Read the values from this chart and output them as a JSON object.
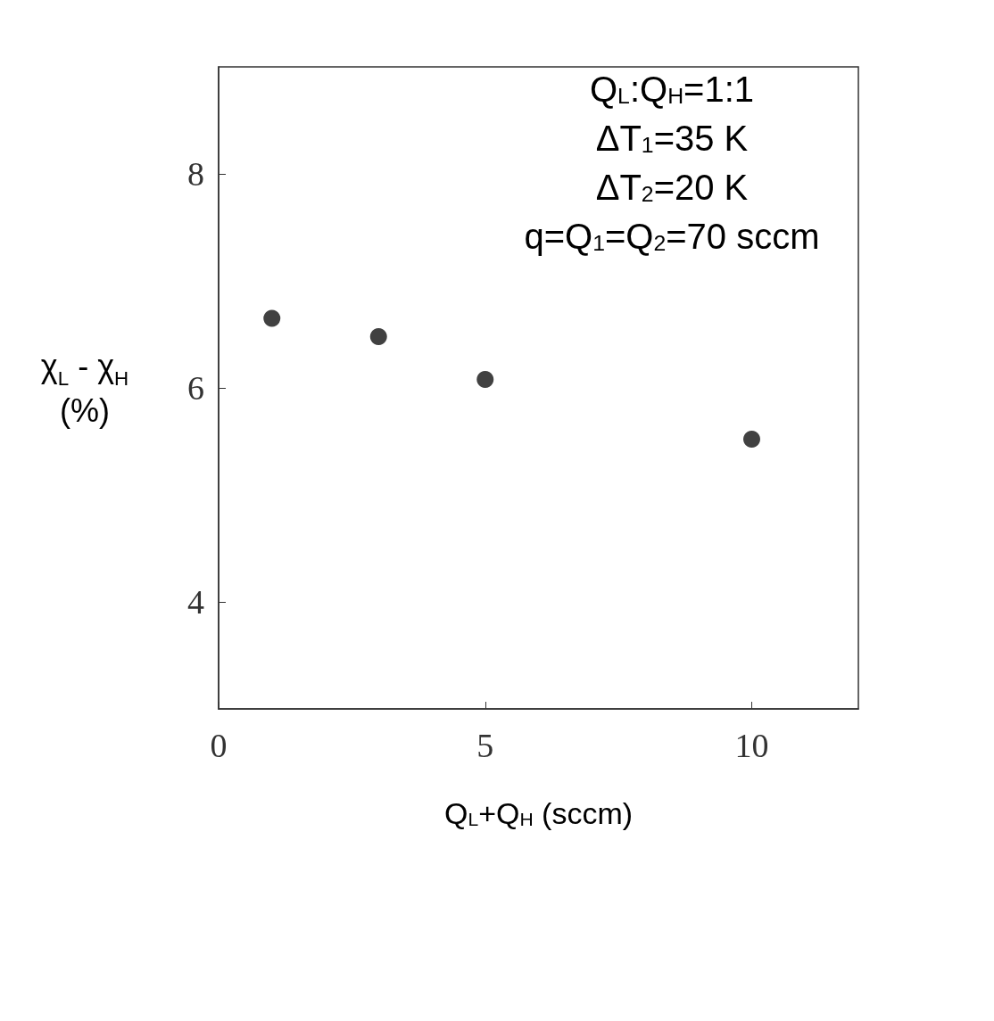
{
  "chart_data": {
    "type": "scatter",
    "xlabel": "Q$_{L}$+Q$_{H}$ (sccm)",
    "ylabel": "χ$_{L}$ - χ$_{H}$\n(%)",
    "x": [
      1,
      3,
      5,
      10
    ],
    "values": [
      6.65,
      6.48,
      6.08,
      5.52
    ],
    "color": "#111111",
    "marker": "circle",
    "xlim": [
      0,
      12
    ],
    "xticks": [
      0,
      5,
      10
    ],
    "ylim": [
      3,
      9
    ],
    "yticks": [
      4,
      6,
      8
    ],
    "grid": false,
    "annotations": [
      "Q$_{L}$:Q$_{H}$=1:1",
      "ΔT$_{1}$=35 K",
      "ΔT$_{2}$=20 K",
      "q=Q$_{1}$=Q$_{2}$=70 sccm"
    ]
  }
}
